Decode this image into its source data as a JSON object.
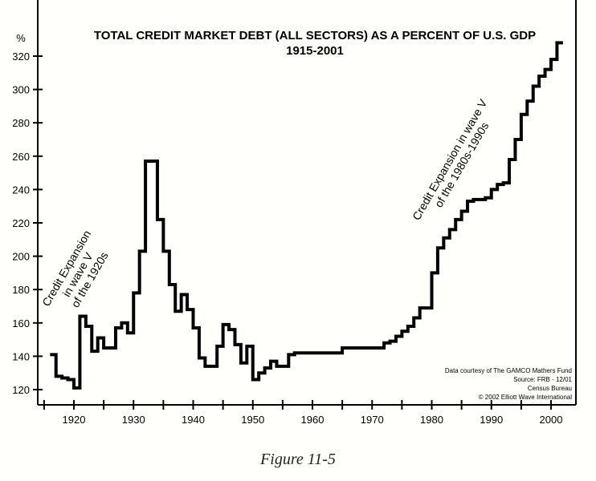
{
  "chart_data": {
    "type": "line",
    "title": "TOTAL CREDIT MARKET DEBT (ALL SECTORS) AS A PERCENT OF U.S. GDP",
    "subtitle": "1915-2001",
    "ylabel": "%",
    "xlabel": "",
    "ylim": [
      120,
      320
    ],
    "xlim": [
      1915,
      2002
    ],
    "yticks": [
      120,
      140,
      160,
      180,
      200,
      220,
      240,
      260,
      280,
      300,
      320
    ],
    "xticks": [
      1920,
      1930,
      1940,
      1950,
      1960,
      1970,
      1980,
      1990,
      2000
    ],
    "grid": false,
    "series": [
      {
        "name": "Total credit market debt % of GDP",
        "x": [
          1916,
          1917,
          1918,
          1919,
          1920,
          1921,
          1922,
          1923,
          1924,
          1925,
          1926,
          1927,
          1928,
          1929,
          1930,
          1931,
          1932,
          1933,
          1934,
          1935,
          1936,
          1937,
          1938,
          1939,
          1940,
          1941,
          1942,
          1943,
          1944,
          1945,
          1946,
          1947,
          1948,
          1949,
          1950,
          1951,
          1952,
          1953,
          1954,
          1955,
          1956,
          1957,
          1958,
          1959,
          1960,
          1961,
          1962,
          1963,
          1964,
          1965,
          1966,
          1967,
          1968,
          1969,
          1970,
          1971,
          1972,
          1973,
          1974,
          1975,
          1976,
          1977,
          1978,
          1979,
          1980,
          1981,
          1982,
          1983,
          1984,
          1985,
          1986,
          1987,
          1988,
          1989,
          1990,
          1991,
          1992,
          1993,
          1994,
          1995,
          1996,
          1997,
          1998,
          1999,
          2000,
          2001
        ],
        "values": [
          141,
          128,
          127,
          126,
          121,
          164,
          158,
          143,
          151,
          145,
          145,
          157,
          160,
          154,
          178,
          203,
          257,
          257,
          222,
          203,
          183,
          167,
          177,
          168,
          157,
          139,
          134,
          134,
          146,
          159,
          156,
          147,
          136,
          146,
          126,
          130,
          133,
          137,
          134,
          134,
          141,
          142,
          142,
          142,
          142,
          142,
          142,
          142,
          142,
          145,
          145,
          145,
          145,
          145,
          145,
          145,
          148,
          149,
          152,
          155,
          158,
          163,
          169,
          169,
          190,
          205,
          211,
          216,
          222,
          227,
          233,
          234,
          234,
          235,
          240,
          243,
          244,
          258,
          270,
          285,
          293,
          302,
          308,
          312,
          318,
          328
        ]
      }
    ],
    "annotations": [
      {
        "lines": [
          "Credit Expansion",
          "in wave V",
          "of the 1920s"
        ]
      },
      {
        "lines": [
          "Credit Expansion in wave V",
          "of the 1980s-1990s"
        ]
      }
    ],
    "source_lines": [
      "Data courtesy of The GAMCO Mathers Fund",
      "Source: FRB - 12/01",
      "Census Bureau",
      "© 2002 Elliott Wave International"
    ]
  },
  "caption": "Figure 11-5"
}
